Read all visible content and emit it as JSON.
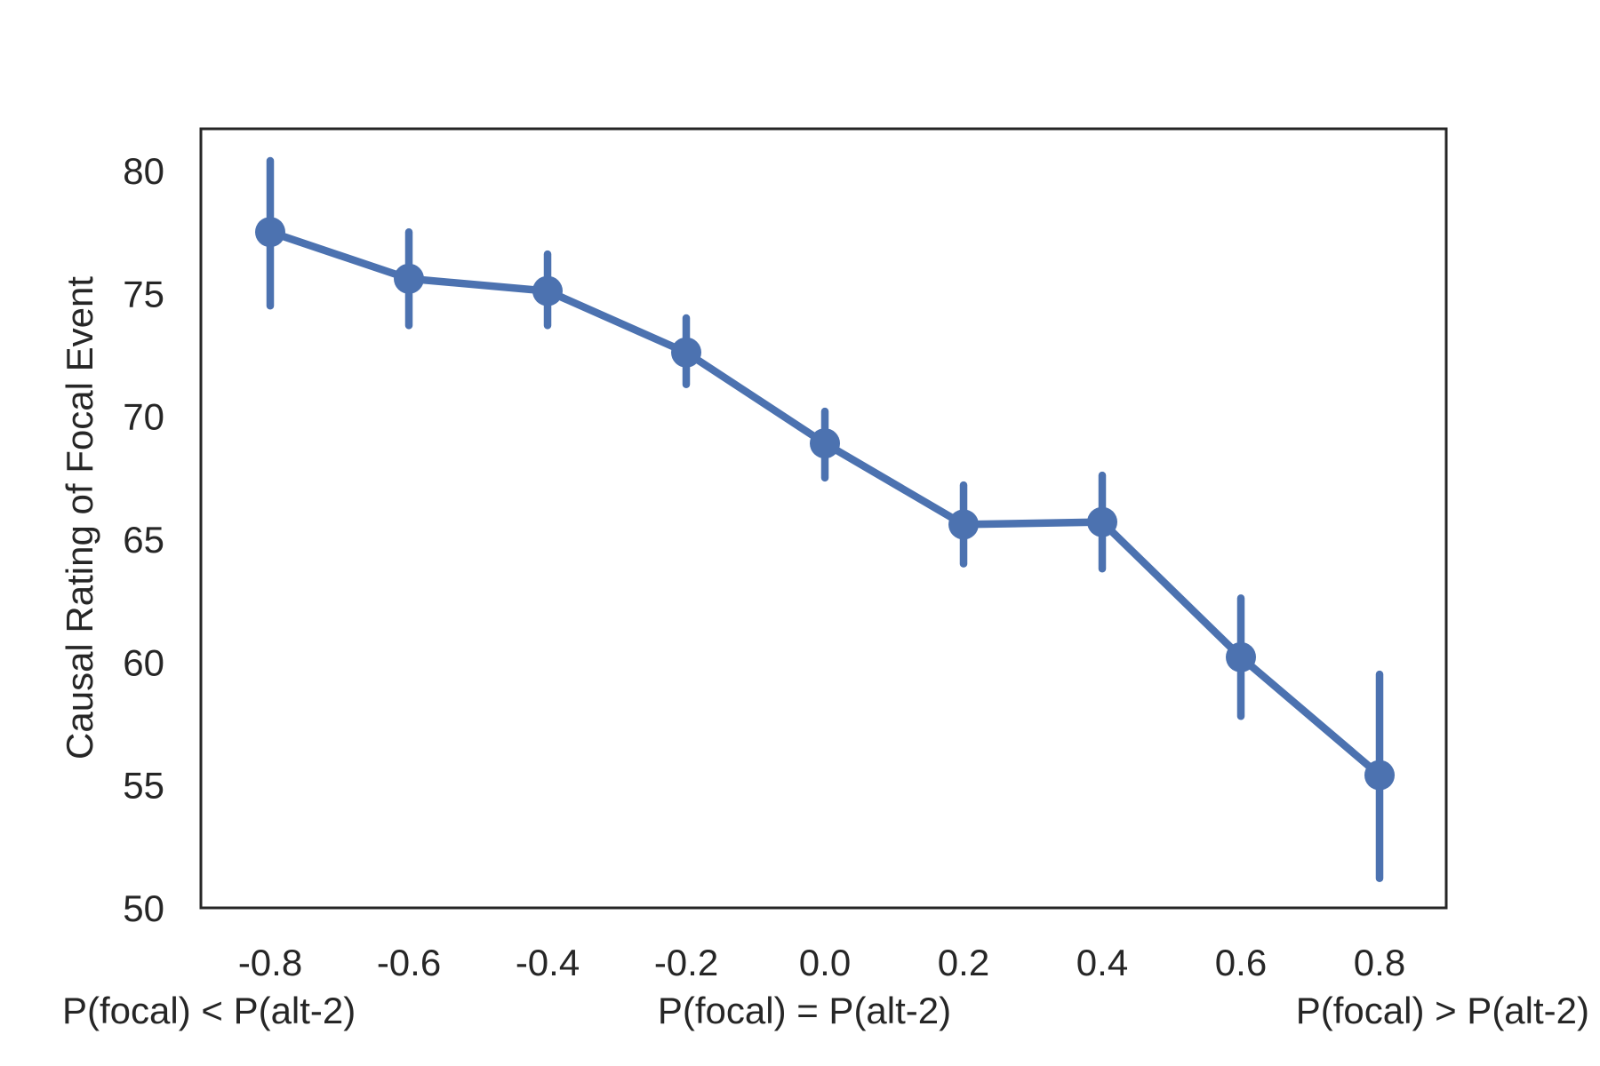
{
  "chart_data": {
    "type": "line",
    "title": "",
    "xlabel_groups": [
      "P(focal) < P(alt-2)",
      "P(focal) = P(alt-2)",
      "P(focal) > P(alt-2)"
    ],
    "ylabel": "Causal Rating of Focal Event",
    "x_tick_labels": [
      "-0.8",
      "-0.6",
      "-0.4",
      "-0.2",
      "0.0",
      "0.2",
      "0.4",
      "0.6",
      "0.8"
    ],
    "y_tick_labels": [
      "50",
      "55",
      "60",
      "65",
      "70",
      "75",
      "80"
    ],
    "ylim": [
      50,
      81.7
    ],
    "grid": false,
    "color": "#4c72b0",
    "series": [
      {
        "x": [
          -0.8,
          -0.6,
          -0.4,
          -0.2,
          0.0,
          0.2,
          0.4,
          0.6,
          0.8
        ],
        "values": [
          77.5,
          75.6,
          75.1,
          72.6,
          68.9,
          65.6,
          65.7,
          60.2,
          55.4
        ],
        "error_low": [
          74.5,
          73.7,
          73.7,
          71.3,
          67.5,
          64.0,
          63.8,
          57.8,
          51.2
        ],
        "error_high": [
          80.4,
          77.5,
          76.6,
          74.0,
          70.2,
          67.2,
          67.6,
          62.6,
          59.5
        ]
      }
    ]
  }
}
